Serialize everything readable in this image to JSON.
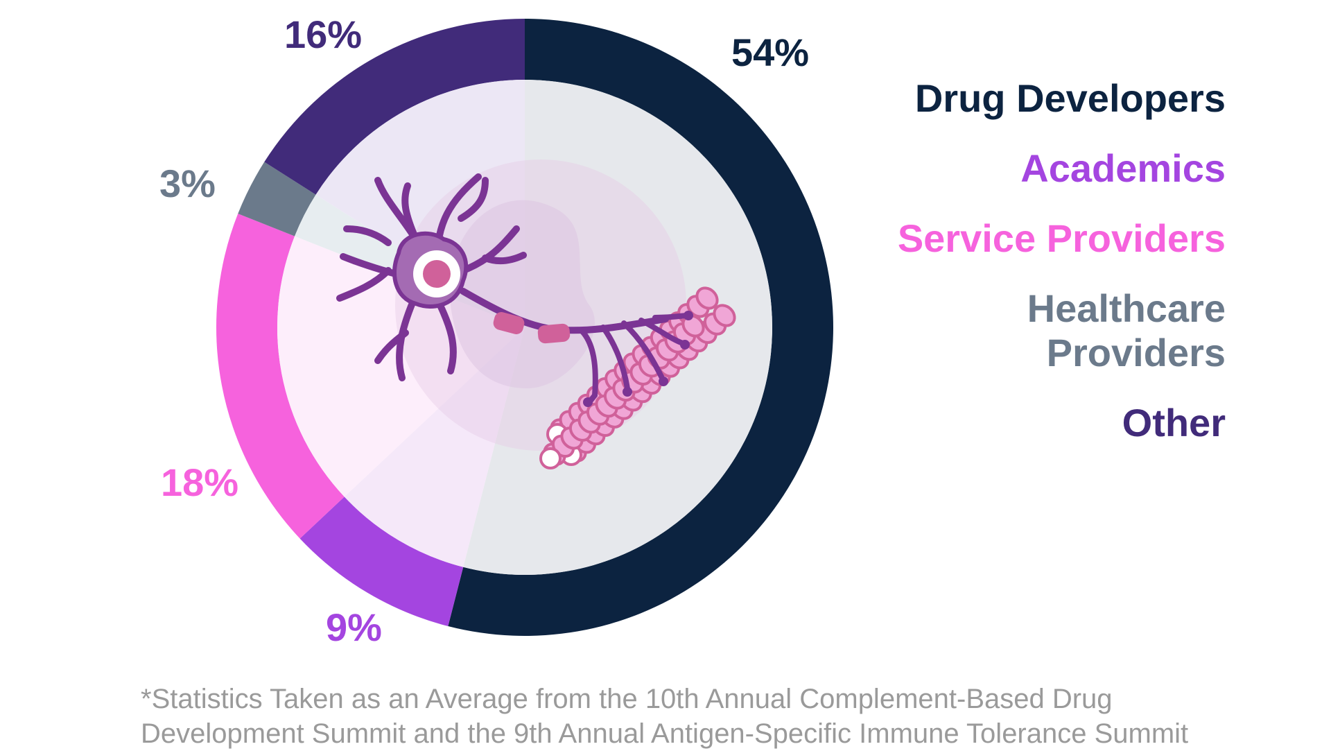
{
  "chart_data": {
    "type": "pie",
    "slices": [
      {
        "label": "Drug Developers",
        "value": 54,
        "value_label": "54%",
        "color": "#0c2340"
      },
      {
        "label": "Academics",
        "value": 9,
        "value_label": "9%",
        "color": "#a445e0"
      },
      {
        "label": "Service Providers",
        "value": 18,
        "value_label": "18%",
        "color": "#f662dd"
      },
      {
        "label": "Healthcare Providers",
        "value": 3,
        "value_label": "3%",
        "color": "#6b7a8b"
      },
      {
        "label": "Other",
        "value": 16,
        "value_label": "16%",
        "color": "#412b7a"
      }
    ],
    "legend": {
      "placement": "right",
      "entries": [
        {
          "text": "Drug Developers",
          "color": "#0c2340"
        },
        {
          "text": "Academics",
          "color": "#a445e0"
        },
        {
          "text": "Service Providers",
          "color": "#f662dd"
        },
        {
          "text": "Healthcare Providers",
          "color": "#6b7a8b"
        },
        {
          "text": "Other",
          "color": "#412b7a"
        }
      ]
    },
    "title": "",
    "footnote": "*Statistics Taken as an Average from the 10th Annual Complement-Based Drug Development Summit and the 9th Annual Antigen-Specific Immune Tolerance Summit"
  },
  "illustration": {
    "icon": "neuron-muscle-icon"
  }
}
